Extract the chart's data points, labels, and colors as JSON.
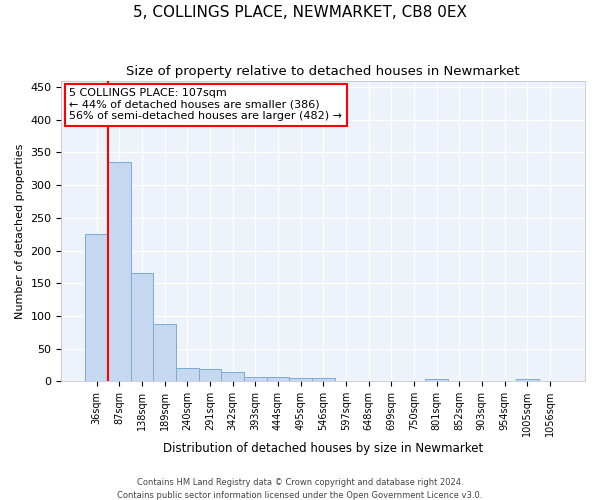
{
  "title": "5, COLLINGS PLACE, NEWMARKET, CB8 0EX",
  "subtitle": "Size of property relative to detached houses in Newmarket",
  "xlabel": "Distribution of detached houses by size in Newmarket",
  "ylabel": "Number of detached properties",
  "categories": [
    "36sqm",
    "87sqm",
    "138sqm",
    "189sqm",
    "240sqm",
    "291sqm",
    "342sqm",
    "393sqm",
    "444sqm",
    "495sqm",
    "546sqm",
    "597sqm",
    "648sqm",
    "699sqm",
    "750sqm",
    "801sqm",
    "852sqm",
    "903sqm",
    "954sqm",
    "1005sqm",
    "1056sqm"
  ],
  "values": [
    226,
    336,
    165,
    88,
    20,
    19,
    14,
    7,
    6,
    5,
    5,
    0,
    0,
    0,
    0,
    4,
    0,
    0,
    0,
    4,
    0
  ],
  "bar_color": "#c5d8f0",
  "bar_edge_color": "#7aacd6",
  "vline_x": 0.5,
  "vline_color": "red",
  "annotation_text": "5 COLLINGS PLACE: 107sqm\n← 44% of detached houses are smaller (386)\n56% of semi-detached houses are larger (482) →",
  "annotation_box_color": "white",
  "annotation_box_edge": "red",
  "ylim": [
    0,
    460
  ],
  "yticks": [
    0,
    50,
    100,
    150,
    200,
    250,
    300,
    350,
    400,
    450
  ],
  "footer_line1": "Contains HM Land Registry data © Crown copyright and database right 2024.",
  "footer_line2": "Contains public sector information licensed under the Open Government Licence v3.0.",
  "background_color": "#eef2fa",
  "title_fontsize": 11,
  "subtitle_fontsize": 9.5,
  "title_fontweight": "normal"
}
